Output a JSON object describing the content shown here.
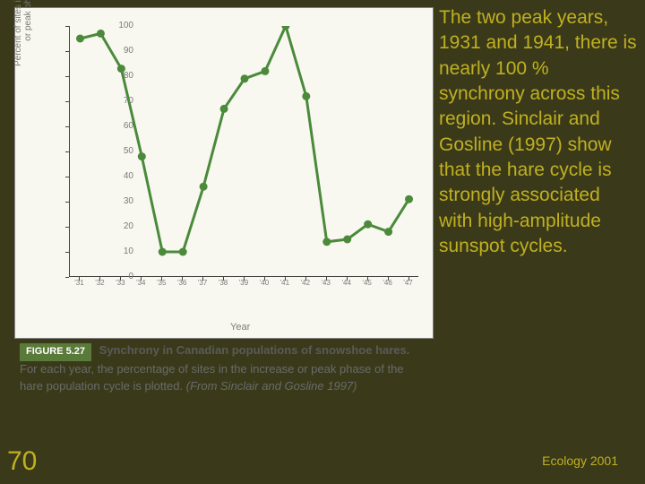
{
  "chart": {
    "type": "line",
    "background_color": "#f8f8f0",
    "line_color": "#4a8a3a",
    "line_width": 3,
    "marker_color": "#4a8a3a",
    "marker_radius": 4.5,
    "xlabel": "Year",
    "ylabel": "Percent of sites in increase\nor peak phase",
    "label_color": "#7a7a7a",
    "label_fontsize": 10,
    "ylim": [
      0,
      100
    ],
    "ytick_step": 10,
    "yticks": [
      0,
      10,
      20,
      30,
      40,
      50,
      60,
      70,
      80,
      90,
      100
    ],
    "xticks": [
      "'31",
      "'32",
      "'33",
      "'34",
      "'35",
      "'36",
      "'37",
      "'38",
      "'39",
      "'40",
      "'41",
      "'42",
      "'43",
      "'44",
      "'45",
      "'46",
      "'47"
    ],
    "values": [
      95,
      97,
      83,
      48,
      10,
      10,
      36,
      67,
      79,
      82,
      100,
      72,
      14,
      15,
      21,
      18,
      31
    ],
    "axis_color": "#444444",
    "tick_color": "#7a7a7a"
  },
  "figure_caption": {
    "badge": "FIGURE 5.27",
    "title": "Synchrony in Canadian populations of snowshoe hares.",
    "body": " For each year, the percentage of sites in the increase or peak phase of the hare population cycle is plotted. ",
    "attribution": "(From Sinclair and Gosline 1997)",
    "badge_bg": "#5a7a3a",
    "badge_fg": "#ffffff",
    "text_color": "#6a6a6a"
  },
  "side_text": "The two peak years, 1931 and 1941, there is nearly 100 % synchrony across this region. Sinclair and Gosline (1997) show that the hare cycle is strongly associated with high-amplitude sunspot cycles.",
  "side_text_color": "#c0b020",
  "page_number": "70",
  "footer_right": "Ecology 2001",
  "slide_bg": "#3a3a1a"
}
